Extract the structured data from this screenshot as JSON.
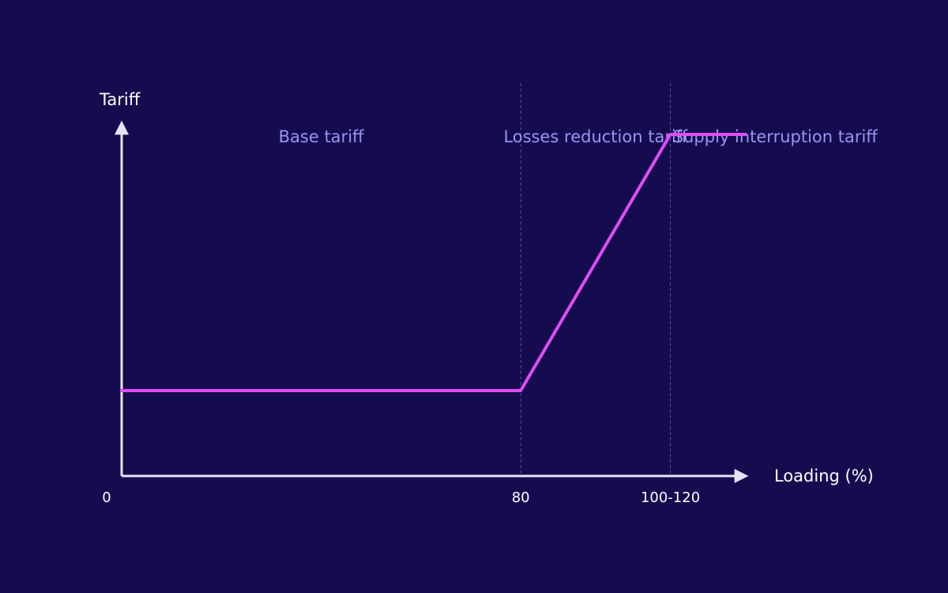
{
  "colors": {
    "background": "#150c50",
    "axis": "#e6e3f5",
    "line": "#e04cf2",
    "region_label": "#9c93f2",
    "divider": "#5a5296"
  },
  "chart_data": {
    "type": "line",
    "title": "",
    "xlabel": "Loading (%)",
    "ylabel": "Tariff",
    "x_ticks": [
      "0",
      "80",
      "100-120"
    ],
    "regions": [
      {
        "label": "Base tariff"
      },
      {
        "label": "Losses reduction tariff"
      },
      {
        "label": "Supply interruption tariff"
      }
    ],
    "series": [
      {
        "values": [
          {
            "x": 0,
            "y": 0.2
          },
          {
            "x": 80,
            "y": 0.2
          },
          {
            "x": 110,
            "y": 0.8
          },
          {
            "x": 125,
            "y": 0.8
          }
        ]
      }
    ],
    "xlim": [
      0,
      140
    ],
    "ylim": [
      0,
      1
    ],
    "y_ticks_shown": false,
    "grid": false,
    "legend": "none"
  }
}
